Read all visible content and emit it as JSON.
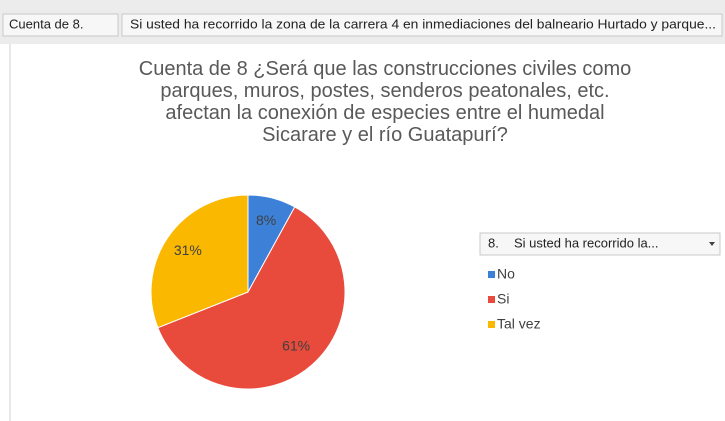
{
  "pivot_fields": {
    "values_field": "Cuenta de 8.",
    "axis_field": "Si usted ha recorrido la zona de la carrera 4 en inmediaciones del balneario Hurtado y parque...",
    "legend_field_number": "8.",
    "legend_field": "Si usted ha recorrido la..."
  },
  "chart_data": {
    "type": "pie",
    "title": "Cuenta de 8 ¿Será que las construcciones civiles como parques, muros, postes, senderos peatonales, etc. afectan la conexión de especies entre el humedal Sicarare y el río Guatapurí?",
    "categories": [
      "No",
      "Si",
      "Tal vez"
    ],
    "values": [
      8,
      61,
      31
    ],
    "value_labels": [
      "8%",
      "61%",
      "31%"
    ],
    "colors": [
      "#3d80d8",
      "#e84a3b",
      "#fbb800"
    ]
  }
}
